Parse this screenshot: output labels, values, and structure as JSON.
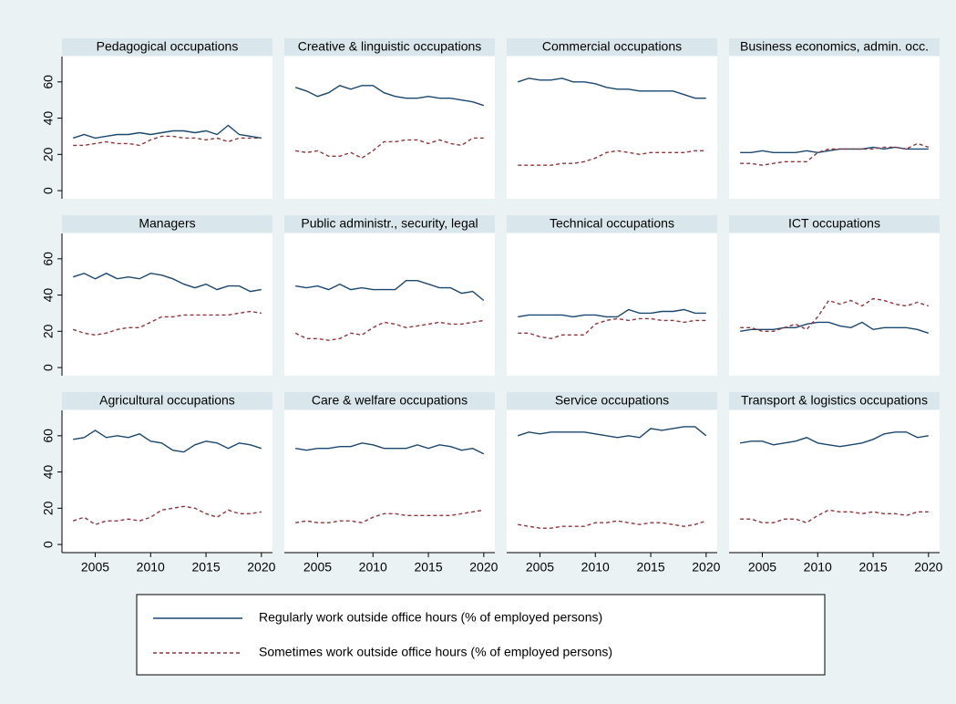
{
  "chart_data": {
    "type": "line",
    "x": [
      2003,
      2004,
      2005,
      2006,
      2007,
      2008,
      2009,
      2010,
      2011,
      2012,
      2013,
      2014,
      2015,
      2016,
      2017,
      2018,
      2019,
      2020
    ],
    "xlim": [
      2002,
      2021
    ],
    "xticks": [
      2005,
      2010,
      2015,
      2020
    ],
    "ylim": [
      -4.5,
      74
    ],
    "yticks": [
      0,
      20,
      40,
      60
    ],
    "grid": false,
    "series": [
      {
        "name": "Regularly work outside office hours (% of employed persons)",
        "color": "#1a476f",
        "dashed": false
      },
      {
        "name": "Sometimes work outside office hours (% of employed persons)",
        "color": "#90353b",
        "dashed": true
      }
    ],
    "panels": [
      {
        "title": "Pedagogical occupations",
        "values": [
          [
            29,
            31,
            29,
            30,
            31,
            31,
            32,
            31,
            32,
            33,
            33,
            32,
            33,
            31,
            36,
            31,
            30,
            29
          ],
          [
            25,
            25,
            26,
            27,
            26,
            26,
            25,
            28,
            30,
            30,
            29,
            29,
            28,
            29,
            27,
            29,
            29,
            29
          ]
        ]
      },
      {
        "title": "Creative & linguistic occupations",
        "values": [
          [
            57,
            55,
            52,
            54,
            58,
            56,
            58,
            58,
            54,
            52,
            51,
            51,
            52,
            51,
            51,
            50,
            49,
            47
          ],
          [
            22,
            21,
            22,
            19,
            19,
            21,
            18,
            22,
            27,
            27,
            28,
            28,
            26,
            28,
            26,
            25,
            29,
            29
          ]
        ]
      },
      {
        "title": "Commercial occupations",
        "values": [
          [
            60,
            62,
            61,
            61,
            62,
            60,
            60,
            59,
            57,
            56,
            56,
            55,
            55,
            55,
            55,
            53,
            51,
            51
          ],
          [
            14,
            14,
            14,
            14,
            15,
            15,
            16,
            18,
            21,
            22,
            21,
            20,
            21,
            21,
            21,
            21,
            22,
            22
          ]
        ]
      },
      {
        "title": "Business economics, admin. occ.",
        "values": [
          [
            21,
            21,
            22,
            21,
            21,
            21,
            22,
            21,
            22,
            23,
            23,
            23,
            24,
            23,
            24,
            23,
            23,
            23
          ],
          [
            15,
            15,
            14,
            15,
            16,
            16,
            16,
            21,
            23,
            23,
            23,
            23,
            23,
            24,
            24,
            23,
            26,
            24
          ]
        ]
      },
      {
        "title": "Managers",
        "values": [
          [
            50,
            52,
            49,
            52,
            49,
            50,
            49,
            52,
            51,
            49,
            46,
            44,
            46,
            43,
            45,
            45,
            42,
            43
          ],
          [
            21,
            19,
            18,
            19,
            21,
            22,
            22,
            25,
            28,
            28,
            29,
            29,
            29,
            29,
            29,
            30,
            31,
            30
          ]
        ]
      },
      {
        "title": "Public administr., security, legal",
        "values": [
          [
            45,
            44,
            45,
            43,
            46,
            43,
            44,
            43,
            43,
            43,
            48,
            48,
            46,
            44,
            44,
            41,
            42,
            37
          ],
          [
            19,
            16,
            16,
            15,
            16,
            19,
            18,
            22,
            25,
            24,
            22,
            23,
            24,
            25,
            24,
            24,
            25,
            26
          ]
        ]
      },
      {
        "title": "Technical occupations",
        "values": [
          [
            28,
            29,
            29,
            29,
            29,
            28,
            29,
            29,
            28,
            28,
            32,
            30,
            30,
            31,
            31,
            32,
            30,
            30
          ],
          [
            19,
            19,
            17,
            16,
            18,
            18,
            18,
            24,
            26,
            27,
            26,
            27,
            27,
            26,
            26,
            25,
            26,
            26
          ]
        ]
      },
      {
        "title": "ICT occupations",
        "values": [
          [
            20,
            21,
            21,
            21,
            22,
            22,
            24,
            25,
            25,
            23,
            22,
            25,
            21,
            22,
            22,
            22,
            21,
            19
          ],
          [
            22,
            22,
            20,
            20,
            22,
            24,
            21,
            28,
            37,
            35,
            37,
            34,
            38,
            37,
            35,
            34,
            36,
            34
          ]
        ]
      },
      {
        "title": "Agricultural occupations",
        "values": [
          [
            58,
            59,
            63,
            59,
            60,
            59,
            61,
            57,
            56,
            52,
            51,
            55,
            57,
            56,
            53,
            56,
            55,
            53
          ],
          [
            13,
            15,
            11,
            13,
            13,
            14,
            13,
            15,
            19,
            20,
            21,
            20,
            17,
            15,
            19,
            17,
            17,
            18
          ]
        ]
      },
      {
        "title": "Care & welfare occupations",
        "values": [
          [
            53,
            52,
            53,
            53,
            54,
            54,
            56,
            55,
            53,
            53,
            53,
            55,
            53,
            55,
            54,
            52,
            53,
            50
          ],
          [
            12,
            13,
            12,
            12,
            13,
            13,
            12,
            15,
            17,
            17,
            16,
            16,
            16,
            16,
            16,
            17,
            18,
            19
          ]
        ]
      },
      {
        "title": "Service occupations",
        "values": [
          [
            60,
            62,
            61,
            62,
            62,
            62,
            62,
            61,
            60,
            59,
            60,
            59,
            64,
            63,
            64,
            65,
            65,
            60
          ],
          [
            11,
            10,
            9,
            9,
            10,
            10,
            10,
            12,
            12,
            13,
            12,
            11,
            12,
            12,
            11,
            10,
            11,
            13
          ]
        ]
      },
      {
        "title": "Transport & logistics occupations",
        "values": [
          [
            56,
            57,
            57,
            55,
            56,
            57,
            59,
            56,
            55,
            54,
            55,
            56,
            58,
            61,
            62,
            62,
            59,
            60
          ],
          [
            14,
            14,
            12,
            12,
            14,
            14,
            12,
            16,
            19,
            18,
            18,
            17,
            18,
            17,
            17,
            16,
            18,
            18
          ]
        ]
      }
    ]
  }
}
